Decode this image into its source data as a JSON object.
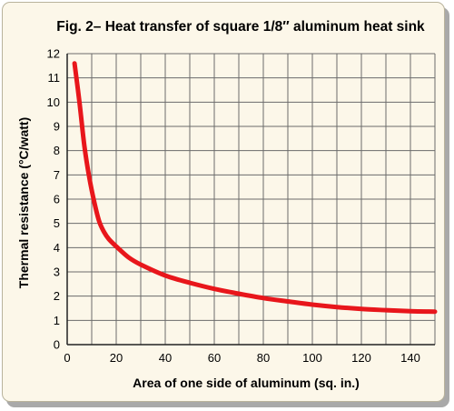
{
  "chart_data": {
    "type": "line",
    "title": "Fig. 2– Heat transfer of square 1/8″ aluminum heat sink",
    "xlabel": "Area of one side of aluminum (sq. in.)",
    "ylabel": "Thermal resistance (°C/watt)",
    "xlim": [
      0,
      150
    ],
    "ylim": [
      0,
      12
    ],
    "x_ticks": [
      0,
      20,
      40,
      60,
      80,
      100,
      120,
      140
    ],
    "x_tick_labels": [
      "0",
      "20",
      "40",
      "60",
      "80",
      "100",
      "120",
      "140"
    ],
    "y_ticks": [
      0,
      1,
      2,
      3,
      4,
      5,
      6,
      7,
      8,
      9,
      10,
      11,
      12
    ],
    "y_tick_labels": [
      "0",
      "1",
      "2",
      "3",
      "4",
      "5",
      "6",
      "7",
      "8",
      "9",
      "10",
      "11",
      "12"
    ],
    "grid": true,
    "x_grid_step": 10,
    "y_grid_step": 1,
    "series": [
      {
        "color": "#e8161b",
        "x": [
          3,
          5,
          7,
          9,
          11,
          13,
          15,
          17,
          20,
          25,
          30,
          40,
          50,
          60,
          70,
          80,
          90,
          100,
          110,
          120,
          130,
          140,
          150
        ],
        "y": [
          11.6,
          10.0,
          8.2,
          6.9,
          5.9,
          5.1,
          4.65,
          4.35,
          4.05,
          3.6,
          3.3,
          2.85,
          2.55,
          2.3,
          2.1,
          1.92,
          1.78,
          1.65,
          1.55,
          1.47,
          1.42,
          1.38,
          1.36
        ]
      }
    ]
  },
  "colors": {
    "panel_background": "#fcf7e9",
    "grid": "#6b6b6b",
    "line": "#e8161b"
  }
}
